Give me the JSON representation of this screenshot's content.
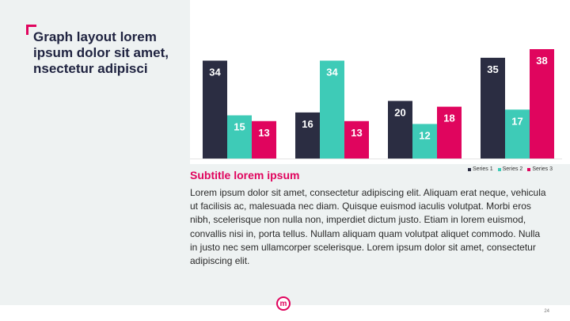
{
  "title": "Graph layout lorem ipsum dolor sit amet, nsectetur adipisci",
  "subtitle": "Subtitle lorem ipsum",
  "body": "Lorem ipsum dolor sit amet, consectetur adipiscing elit. Aliquam erat neque, vehicula ut facilisis ac, malesuada nec diam. Quisque euismod iaculis volutpat. Morbi eros nibh, scelerisque non nulla non, imperdiet dictum justo. Etiam in lorem euismod, convallis nisi in, porta tellus. Nullam aliquam quam volutpat aliquet commodo. Nulla in justo nec sem ullamcorper scelerisque. Lorem ipsum dolor sit amet, consectetur adipiscing elit.",
  "page_number": "24",
  "logo_letter": "m",
  "colors": {
    "accent": "#e0055e",
    "navy": "#2b2d42",
    "teal": "#3ecbb7",
    "pink": "#e0055e"
  },
  "chart_data": {
    "type": "bar",
    "categories": [
      "",
      "",
      "",
      ""
    ],
    "series": [
      {
        "name": "Series 1",
        "color": "#2b2d42",
        "values": [
          34,
          16,
          20,
          35
        ]
      },
      {
        "name": "Series 2",
        "color": "#3ecbb7",
        "values": [
          15,
          34,
          12,
          17
        ]
      },
      {
        "name": "Series 3",
        "color": "#e0055e",
        "values": [
          13,
          13,
          18,
          38
        ]
      }
    ],
    "ylim": [
      0,
      38
    ],
    "data_labels": true,
    "legend_position": "bottom-right",
    "grid": false
  }
}
